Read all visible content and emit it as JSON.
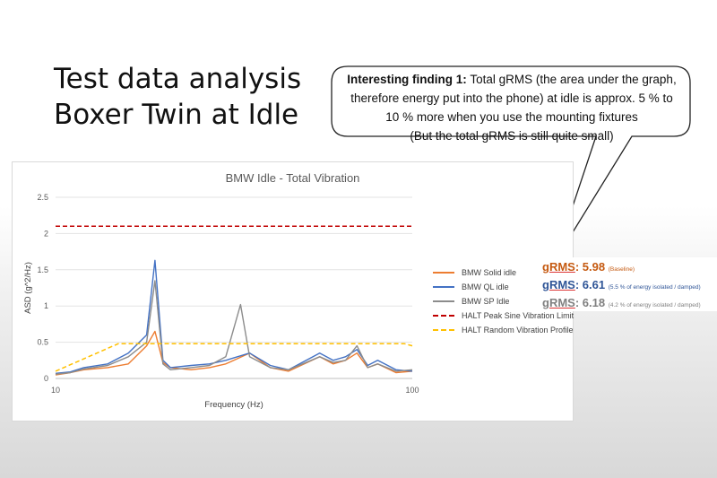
{
  "slide": {
    "title_line1": "Test data analysis",
    "title_line2": "Boxer Twin at Idle"
  },
  "callout": {
    "bold_prefix": "Interesting finding 1:",
    "line1_rest": "Total gRMS (the area under the graph,",
    "line2": "therefore energy put into the phone) at idle is approx. 5 % to",
    "line3": "10 % more when you use the mounting fixtures",
    "line4": "(But the total gRMS is still quite small)"
  },
  "grms": [
    {
      "label": "gRMS",
      "value": ": 5.98",
      "note": "(Baseline)",
      "color": "#c55a11"
    },
    {
      "label": "gRMS",
      "value": ": 6.61",
      "note": "(5.5 % of energy isolated / damped)",
      "color": "#2f5597"
    },
    {
      "label": "gRMS",
      "value": ": 6.18",
      "note": "(4.2 % of energy isolated / damped)",
      "color": "#808080"
    }
  ],
  "chart_data": {
    "type": "line",
    "title": "BMW Idle - Total Vibration",
    "xlabel": "Frequency (Hz)",
    "ylabel": "ASD (g^2/Hz)",
    "x_scale": "log",
    "xlim": [
      10,
      100
    ],
    "ylim": [
      0,
      2.5
    ],
    "x_ticks": [
      "10",
      "100"
    ],
    "y_ticks": [
      "0",
      "0.5",
      "1",
      "1.5",
      "2",
      "2.5"
    ],
    "grid": "horizontal",
    "legend_position": "right",
    "series": [
      {
        "name": "BMW Solid idle",
        "color": "#ed7d31",
        "style": "solid",
        "x": [
          10,
          11,
          12,
          14,
          16,
          18,
          19,
          20,
          21,
          24,
          27,
          30,
          35,
          40,
          45,
          55,
          60,
          65,
          70,
          75,
          80,
          90,
          100
        ],
        "y": [
          0.05,
          0.08,
          0.12,
          0.15,
          0.2,
          0.45,
          0.65,
          0.22,
          0.15,
          0.12,
          0.15,
          0.2,
          0.35,
          0.15,
          0.1,
          0.3,
          0.2,
          0.25,
          0.35,
          0.15,
          0.2,
          0.08,
          0.1
        ]
      },
      {
        "name": "BMW QL idle",
        "color": "#4472c4",
        "style": "solid",
        "x": [
          10,
          11,
          12,
          14,
          16,
          18,
          19,
          20,
          21,
          24,
          27,
          30,
          35,
          40,
          45,
          55,
          60,
          65,
          70,
          75,
          80,
          90,
          100
        ],
        "y": [
          0.07,
          0.09,
          0.15,
          0.2,
          0.35,
          0.6,
          1.63,
          0.25,
          0.15,
          0.18,
          0.2,
          0.25,
          0.35,
          0.18,
          0.12,
          0.35,
          0.25,
          0.3,
          0.4,
          0.18,
          0.25,
          0.12,
          0.1
        ]
      },
      {
        "name": "BMW SP Idle",
        "color": "#8c8c8c",
        "style": "solid",
        "x": [
          10,
          11,
          12,
          14,
          16,
          18,
          19,
          20,
          21,
          24,
          27,
          30,
          33,
          35,
          40,
          45,
          55,
          60,
          65,
          70,
          75,
          80,
          90,
          100
        ],
        "y": [
          0.06,
          0.08,
          0.13,
          0.18,
          0.3,
          0.5,
          1.35,
          0.2,
          0.12,
          0.15,
          0.18,
          0.3,
          1.02,
          0.3,
          0.15,
          0.12,
          0.3,
          0.22,
          0.25,
          0.45,
          0.15,
          0.2,
          0.1,
          0.12
        ]
      },
      {
        "name": "HALT Peak Sine Vibration Limit",
        "color": "#c00000",
        "style": "dashed",
        "x": [
          10,
          100
        ],
        "y": [
          2.1,
          2.1
        ]
      },
      {
        "name": "HALT Random Vibration Profile",
        "color": "#ffc000",
        "style": "dashed",
        "x": [
          10,
          15,
          95,
          100
        ],
        "y": [
          0.1,
          0.48,
          0.48,
          0.45
        ]
      }
    ]
  }
}
